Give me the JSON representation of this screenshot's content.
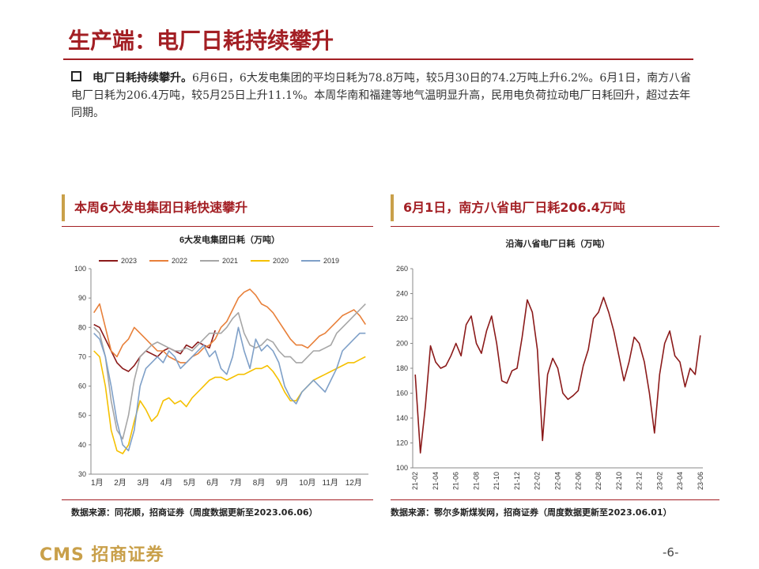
{
  "header": {
    "title": "生产端：电厂日耗持续攀升"
  },
  "bullet": {
    "lead": "电厂日耗持续攀升。",
    "text": "6月6日，6大发电集团的平均日耗为78.8万吨，较5月30日的74.2万吨上升6.2%。6月1日，南方八省电厂日耗为206.4万吨，较5月25日上升11.1%。本周华南和福建等地气温明显升高，民用电负荷拉动电厂日耗回升，超过去年同期。"
  },
  "sections": [
    {
      "title": "本周6大发电集团日耗快速攀升",
      "source": "数据来源：同花顺，招商证券（周度数据更新至2023.06.06）"
    },
    {
      "title": "6月1日，南方八省电厂日耗206.4万吨",
      "source": "数据来源：鄂尔多斯煤炭网，招商证券（周度数据更新至2023.06.01）"
    }
  ],
  "footer": {
    "logo": "CMS 招商证券",
    "page": "-6-"
  },
  "chart_data": [
    {
      "type": "line",
      "title": "6大发电集团日耗（万吨）",
      "legend": "top",
      "categories": [
        "1月",
        null,
        null,
        null,
        "2月",
        null,
        null,
        null,
        "3月",
        null,
        null,
        null,
        "4月",
        null,
        null,
        null,
        "5月",
        null,
        null,
        null,
        "6月",
        null,
        null,
        null,
        "7月",
        null,
        null,
        null,
        "8月",
        null,
        null,
        null,
        "9月",
        null,
        null,
        null,
        "10月",
        null,
        null,
        null,
        "11月",
        null,
        null,
        null,
        "12月",
        null,
        null,
        null
      ],
      "ylim": [
        30,
        100
      ],
      "yticks": [
        30,
        40,
        50,
        60,
        70,
        80,
        90,
        100
      ],
      "series": [
        {
          "name": "2023",
          "color": "#8b1a1a",
          "values": [
            81,
            80,
            76,
            72,
            68,
            66,
            65,
            67,
            70,
            72,
            71,
            70,
            72,
            73,
            72,
            71,
            74,
            73,
            75,
            74,
            73,
            79,
            null,
            null,
            null,
            null,
            null,
            null,
            null,
            null,
            null,
            null,
            null,
            null,
            null,
            null,
            null,
            null,
            null,
            null,
            null,
            null,
            null,
            null,
            null,
            null,
            null,
            null
          ]
        },
        {
          "name": "2022",
          "color": "#e8803a",
          "values": [
            85,
            88,
            80,
            72,
            70,
            74,
            76,
            80,
            78,
            76,
            74,
            72,
            72,
            70,
            69,
            68,
            68,
            70,
            71,
            73,
            74,
            76,
            80,
            82,
            86,
            90,
            92,
            93,
            91,
            88,
            87,
            85,
            82,
            79,
            76,
            74,
            74,
            73,
            75,
            77,
            78,
            80,
            82,
            84,
            85,
            86,
            84,
            81
          ]
        },
        {
          "name": "2021",
          "color": "#a6a6a6",
          "values": [
            80,
            78,
            70,
            55,
            45,
            42,
            50,
            62,
            70,
            72,
            74,
            75,
            74,
            73,
            72,
            72,
            73,
            72,
            74,
            76,
            78,
            78,
            78,
            80,
            83,
            85,
            78,
            74,
            73,
            74,
            76,
            75,
            72,
            70,
            70,
            68,
            68,
            70,
            72,
            72,
            73,
            74,
            78,
            80,
            82,
            84,
            86,
            88
          ]
        },
        {
          "name": "2020",
          "color": "#f5c000",
          "values": [
            72,
            70,
            60,
            45,
            38,
            37,
            40,
            48,
            55,
            52,
            48,
            50,
            55,
            56,
            54,
            55,
            53,
            56,
            58,
            60,
            62,
            63,
            63,
            62,
            63,
            64,
            64,
            65,
            66,
            66,
            67,
            65,
            62,
            58,
            55,
            55,
            58,
            60,
            62,
            63,
            64,
            65,
            66,
            67,
            68,
            68,
            69,
            70
          ]
        },
        {
          "name": "2019",
          "color": "#7fa0c8",
          "values": [
            78,
            76,
            70,
            60,
            48,
            40,
            38,
            45,
            60,
            66,
            68,
            70,
            68,
            72,
            70,
            66,
            68,
            70,
            72,
            74,
            70,
            72,
            66,
            64,
            70,
            80,
            72,
            66,
            76,
            72,
            74,
            72,
            68,
            60,
            56,
            54,
            58,
            60,
            62,
            60,
            58,
            62,
            66,
            72,
            74,
            76,
            78,
            78
          ]
        }
      ]
    },
    {
      "type": "line",
      "title": "沿海八省电厂日耗（万吨）",
      "color": "#8b1a1a",
      "rotate_x_labels": true,
      "categories": [
        "21-02",
        null,
        null,
        null,
        "21-04",
        null,
        null,
        null,
        "21-06",
        null,
        null,
        null,
        "21-08",
        null,
        null,
        null,
        "21-10",
        null,
        null,
        null,
        "21-12",
        null,
        null,
        null,
        "22-02",
        null,
        null,
        null,
        "22-04",
        null,
        null,
        null,
        "22-06",
        null,
        null,
        null,
        "22-08",
        null,
        null,
        null,
        "22-10",
        null,
        null,
        null,
        "22-12",
        null,
        null,
        null,
        "23-02",
        null,
        null,
        null,
        "23-04",
        null,
        null,
        null,
        "23-06"
      ],
      "ylim": [
        100,
        260
      ],
      "yticks": [
        100,
        120,
        140,
        160,
        180,
        200,
        220,
        240,
        260
      ],
      "values": [
        175,
        112,
        150,
        198,
        185,
        180,
        182,
        190,
        200,
        190,
        215,
        222,
        200,
        192,
        210,
        222,
        200,
        170,
        168,
        178,
        180,
        205,
        235,
        225,
        195,
        122,
        175,
        188,
        180,
        160,
        155,
        158,
        162,
        182,
        195,
        220,
        225,
        237,
        225,
        210,
        190,
        170,
        185,
        205,
        200,
        185,
        160,
        128,
        175,
        200,
        210,
        190,
        185,
        165,
        180,
        175,
        206.4
      ]
    }
  ]
}
